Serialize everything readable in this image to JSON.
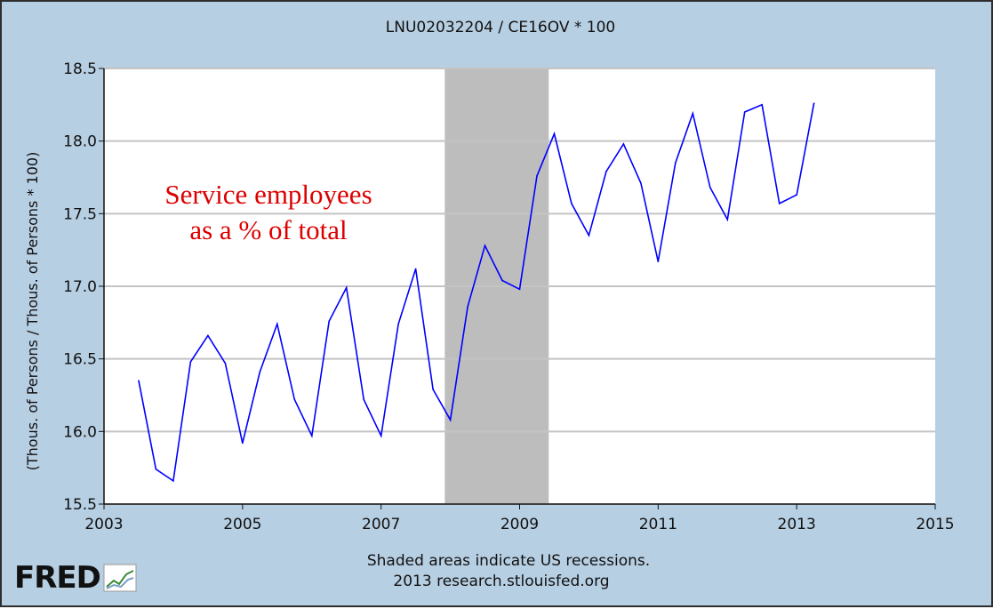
{
  "chart_data": {
    "type": "line",
    "title": "LNU02032204 / CE16OV * 100",
    "ylabel": "(Thous. of Persons / Thous. of Persons * 100)",
    "xlabel": "",
    "xlim": [
      2003,
      2015
    ],
    "ylim": [
      15.5,
      18.5
    ],
    "x_ticks": [
      "2003",
      "2005",
      "2007",
      "2009",
      "2011",
      "2013",
      "2015"
    ],
    "y_ticks": [
      "15.5",
      "16.0",
      "16.5",
      "17.0",
      "17.5",
      "18.0",
      "18.5"
    ],
    "grid": true,
    "recession": {
      "start": 2007.92,
      "end": 2009.42
    },
    "annotation": [
      "Service employees",
      "as a % of total"
    ],
    "series": [
      {
        "x": [
          2003.5,
          2003.75,
          2004.0,
          2004.25,
          2004.5,
          2004.75,
          2005.0,
          2005.25,
          2005.5,
          2005.75,
          2006.0,
          2006.25,
          2006.5,
          2006.75,
          2007.0,
          2007.25,
          2007.5,
          2007.75,
          2008.0,
          2008.25,
          2008.5,
          2008.75,
          2009.0,
          2009.25,
          2009.5,
          2009.75,
          2010.0,
          2010.25,
          2010.5,
          2010.75,
          2011.0,
          2011.25,
          2011.5,
          2011.75,
          2012.0,
          2012.25,
          2012.5,
          2012.75,
          2013.0,
          2013.25
        ],
        "values": [
          16.35,
          15.74,
          15.66,
          16.48,
          16.66,
          16.47,
          15.92,
          16.41,
          16.74,
          16.22,
          15.97,
          16.76,
          16.99,
          16.22,
          15.97,
          16.74,
          17.12,
          16.29,
          16.08,
          16.86,
          17.28,
          17.04,
          16.98,
          17.76,
          18.05,
          17.57,
          17.35,
          17.79,
          17.98,
          17.71,
          17.17,
          17.85,
          18.19,
          17.68,
          17.46,
          18.2,
          18.25,
          17.57,
          17.63,
          18.26
        ]
      }
    ],
    "line_color": "#0000ff",
    "recession_color": "#bdbdbd",
    "annotation_color": "#dd0000"
  },
  "footer": {
    "line1": "Shaded areas indicate US recessions.",
    "line2": "2013 research.stlouisfed.org"
  },
  "logo": {
    "text": "FRED",
    "icon": "fred-graph-icon"
  }
}
